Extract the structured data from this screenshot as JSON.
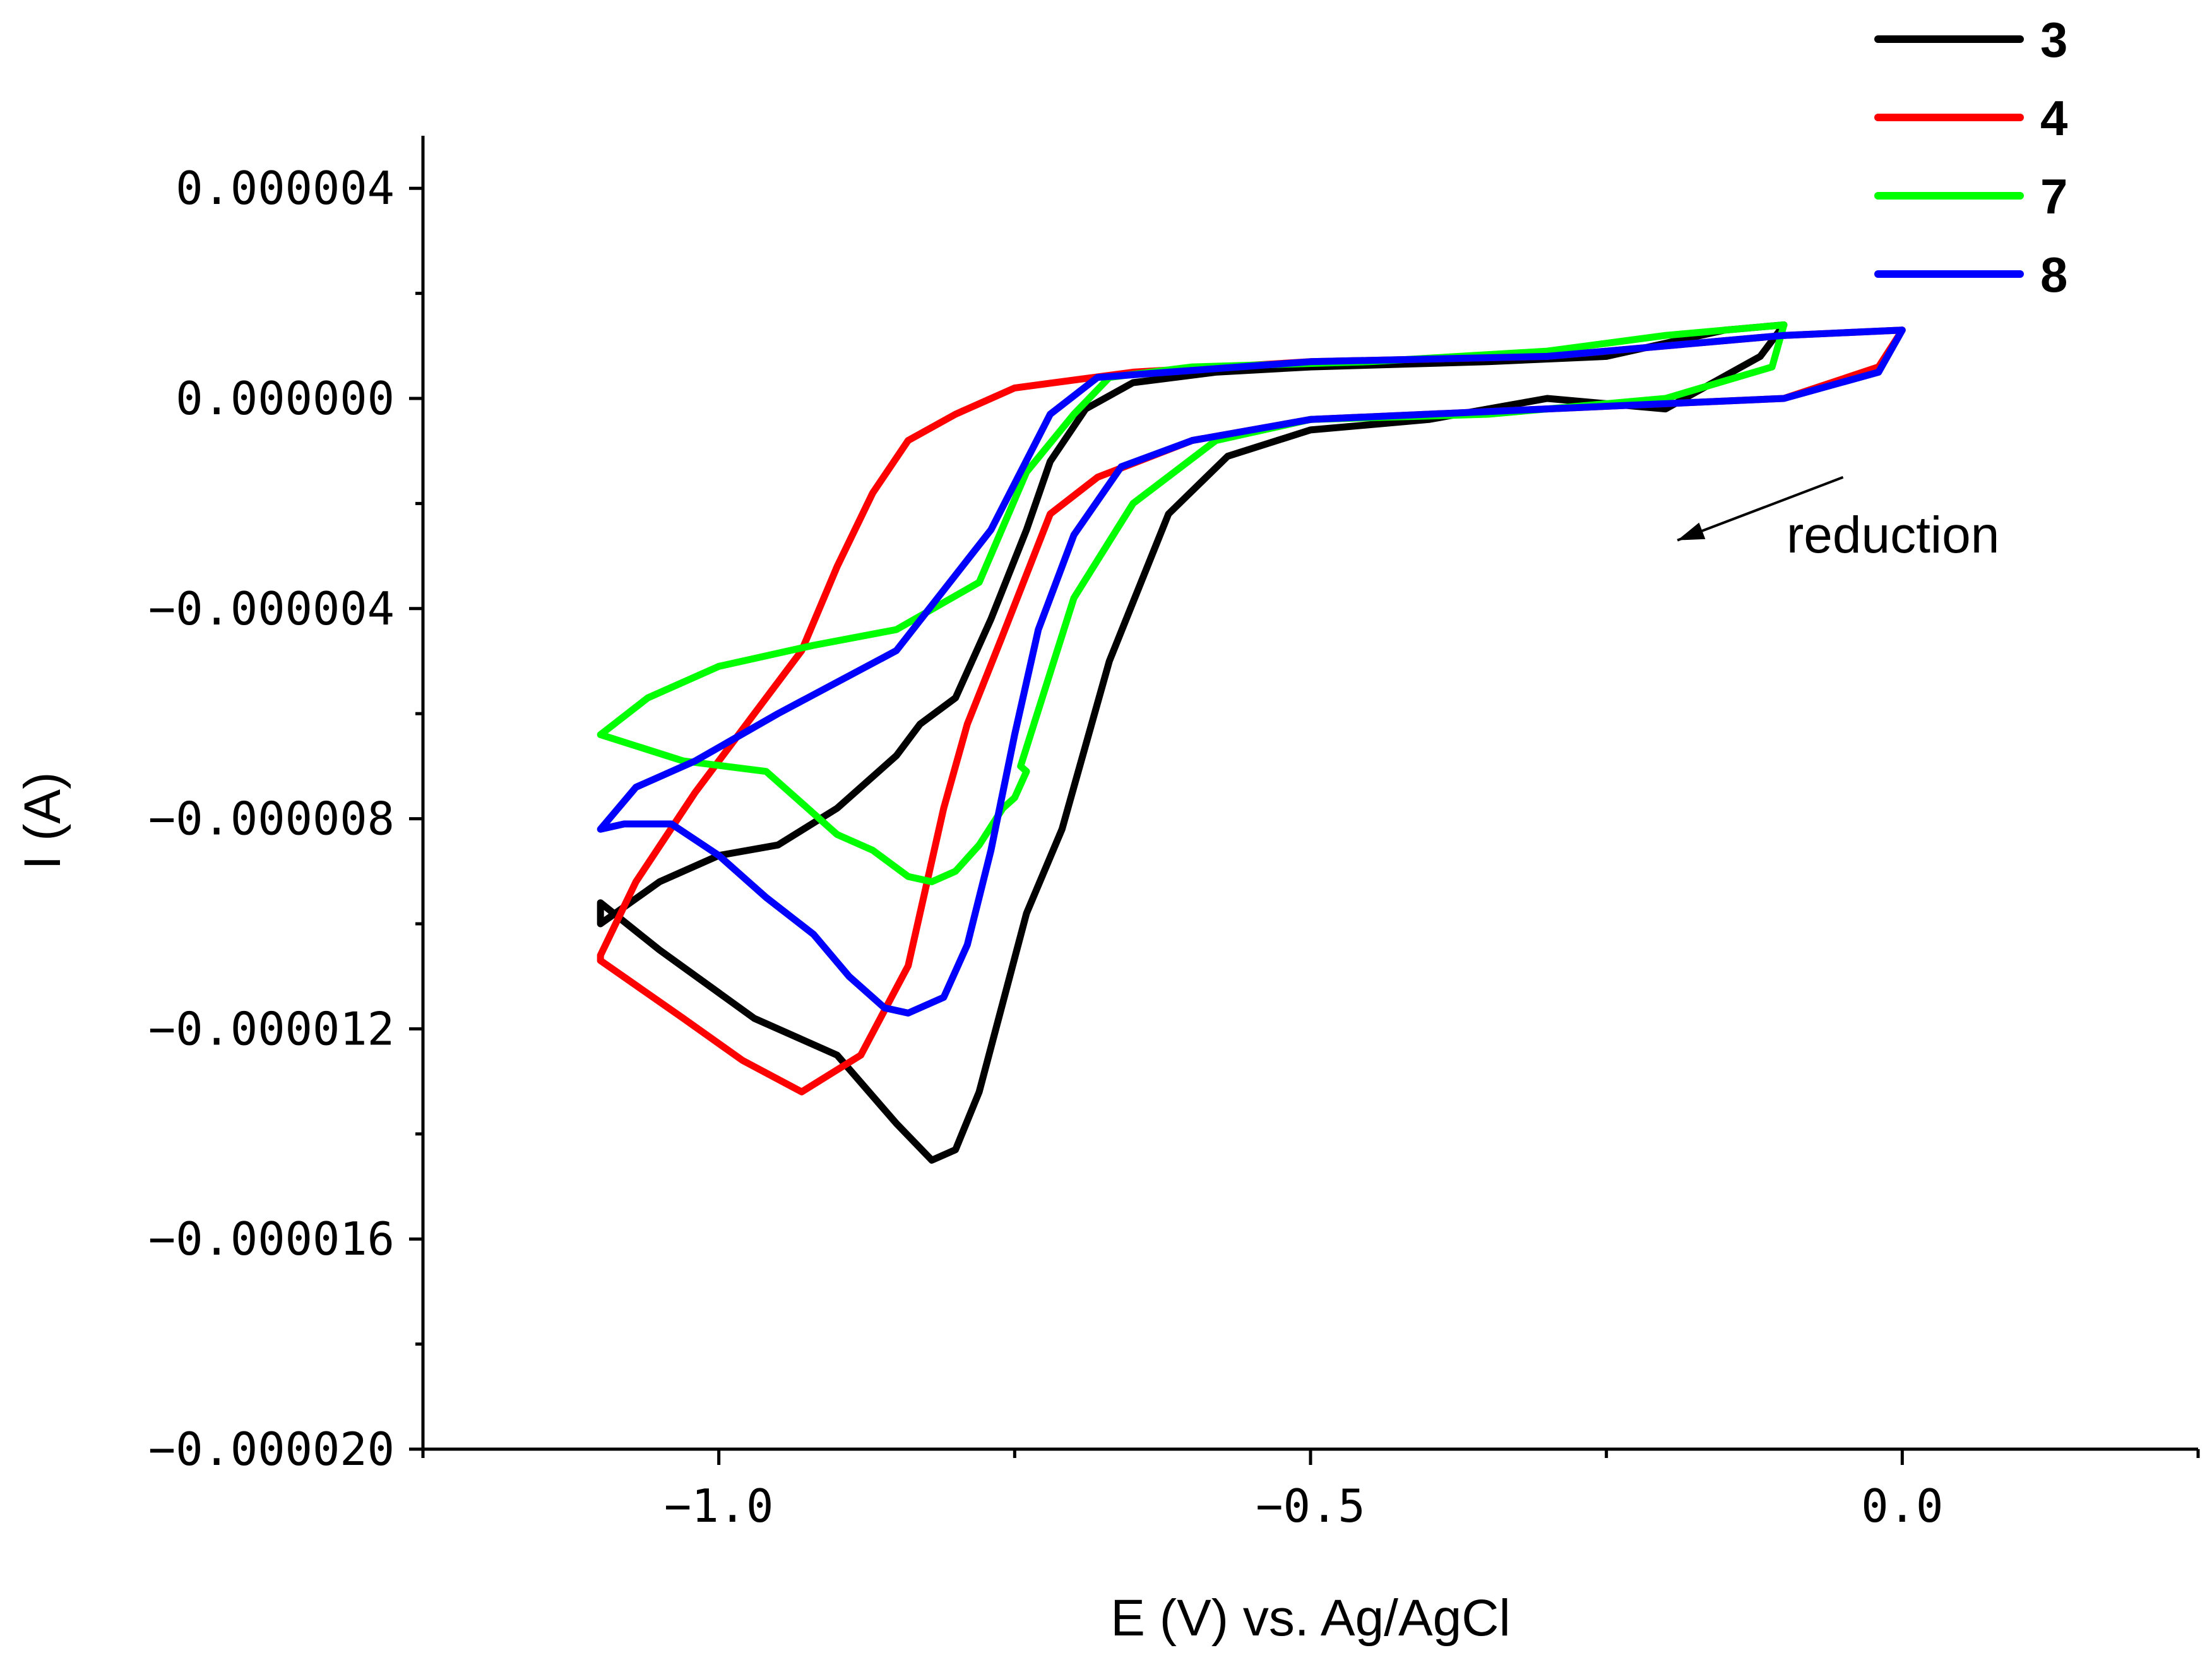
{
  "chart_data": {
    "type": "line",
    "title": "",
    "xlabel": "E (V) vs. Ag/AgCl",
    "ylabel": "I (A)",
    "xlim": [
      -1.25,
      0.25
    ],
    "ylim": [
      -2e-05,
      5e-06
    ],
    "x_ticks": [
      -1.0,
      -0.5,
      0.0
    ],
    "x_tick_labels": [
      "−1.0",
      "−0.5",
      "0.0"
    ],
    "y_ticks": [
      4e-06,
      0.0,
      -4e-06,
      -8e-06,
      -1.2e-05,
      -1.6e-05,
      -2e-05
    ],
    "y_tick_labels": [
      "0.000004",
      "0.000000",
      "−0.000004",
      "−0.000008",
      "−0.000012",
      "−0.000016",
      "−0.000020"
    ],
    "grid": false,
    "legend_position": "top-right",
    "annotation": {
      "text": "reduction",
      "arrow_from": [
        -0.05,
        -1.5e-06
      ],
      "arrow_to": [
        -0.19,
        -2.7e-06
      ]
    },
    "series": [
      {
        "name": "3",
        "color": "#000000",
        "x": [
          -0.1,
          -0.15,
          -0.25,
          -0.35,
          -0.5,
          -0.58,
          -0.65,
          -0.69,
          -0.72,
          -0.74,
          -0.77,
          -0.8,
          -0.83,
          -0.85,
          -0.9,
          -0.95,
          -1.0,
          -1.05,
          -1.1,
          -1.1,
          -1.05,
          -0.97,
          -0.9,
          -0.85,
          -0.82,
          -0.8,
          -0.78,
          -0.76,
          -0.74,
          -0.71,
          -0.67,
          -0.62,
          -0.57,
          -0.5,
          -0.4,
          -0.3,
          -0.2,
          -0.12,
          -0.1
        ],
        "y": [
          1.4e-06,
          1.3e-06,
          8e-07,
          7e-07,
          6e-07,
          5e-07,
          3e-07,
          -2e-07,
          -1.2e-06,
          -2.5e-06,
          -4.2e-06,
          -5.7e-06,
          -6.2e-06,
          -6.8e-06,
          -7.8e-06,
          -8.5e-06,
          -8.7e-06,
          -9.2e-06,
          -1e-05,
          -9.6e-06,
          -1.05e-05,
          -1.18e-05,
          -1.25e-05,
          -1.38e-05,
          -1.45e-05,
          -1.43e-05,
          -1.32e-05,
          -1.15e-05,
          -9.8e-06,
          -8.2e-06,
          -5e-06,
          -2.2e-06,
          -1.1e-06,
          -6e-07,
          -4e-07,
          0.0,
          -2e-07,
          8e-07,
          1.4e-06
        ]
      },
      {
        "name": "4",
        "color": "#ff0000",
        "x": [
          0.0,
          -0.1,
          -0.3,
          -0.5,
          -0.65,
          -0.75,
          -0.8,
          -0.84,
          -0.87,
          -0.9,
          -0.93,
          -0.97,
          -1.02,
          -1.07,
          -1.1,
          -1.1,
          -1.03,
          -0.98,
          -0.93,
          -0.88,
          -0.84,
          -0.81,
          -0.79,
          -0.76,
          -0.72,
          -0.68,
          -0.6,
          -0.5,
          -0.3,
          -0.1,
          -0.02,
          0.0
        ],
        "y": [
          1.3e-06,
          1.2e-06,
          8e-07,
          7e-07,
          5e-07,
          2e-07,
          -3e-07,
          -8e-07,
          -1.8e-06,
          -3.2e-06,
          -4.8e-06,
          -6e-06,
          -7.5e-06,
          -9.2e-06,
          -1.06e-05,
          -1.07e-05,
          -1.18e-05,
          -1.26e-05,
          -1.32e-05,
          -1.25e-05,
          -1.08e-05,
          -7.8e-06,
          -6.2e-06,
          -4.5e-06,
          -2.2e-06,
          -1.5e-06,
          -8e-07,
          -4e-07,
          -2e-07,
          0.0,
          6e-07,
          1.3e-06
        ]
      },
      {
        "name": "7",
        "color": "#00ff00",
        "x": [
          -0.1,
          -0.2,
          -0.3,
          -0.45,
          -0.6,
          -0.67,
          -0.7,
          -0.74,
          -0.78,
          -0.85,
          -0.92,
          -1.0,
          -1.06,
          -1.1,
          -1.03,
          -0.96,
          -0.93,
          -0.9,
          -0.87,
          -0.84,
          -0.82,
          -0.8,
          -0.78,
          -0.76,
          -0.75,
          -0.74,
          -0.745,
          -0.7,
          -0.65,
          -0.58,
          -0.5,
          -0.35,
          -0.2,
          -0.11,
          -0.1
        ],
        "y": [
          1.4e-06,
          1.2e-06,
          9e-07,
          7e-07,
          6e-07,
          4e-07,
          -3e-07,
          -1.4e-06,
          -3.5e-06,
          -4.4e-06,
          -4.7e-06,
          -5.1e-06,
          -5.7e-06,
          -6.4e-06,
          -6.9e-06,
          -7.1e-06,
          -7.7e-06,
          -8.3e-06,
          -8.6e-06,
          -9.1e-06,
          -9.2e-06,
          -9e-06,
          -8.5e-06,
          -7.8e-06,
          -7.6e-06,
          -7.1e-06,
          -7e-06,
          -3.8e-06,
          -2e-06,
          -8e-07,
          -4e-07,
          -3e-07,
          0.0,
          6e-07,
          1.4e-06
        ]
      },
      {
        "name": "8",
        "color": "#0000ff",
        "x": [
          0.0,
          -0.1,
          -0.3,
          -0.5,
          -0.62,
          -0.68,
          -0.72,
          -0.77,
          -0.85,
          -0.95,
          -1.02,
          -1.07,
          -1.1,
          -1.08,
          -1.04,
          -1.0,
          -0.96,
          -0.92,
          -0.89,
          -0.86,
          -0.84,
          -0.81,
          -0.79,
          -0.77,
          -0.75,
          -0.73,
          -0.7,
          -0.66,
          -0.6,
          -0.5,
          -0.3,
          -0.1,
          -0.02,
          0.0
        ],
        "y": [
          1.3e-06,
          1.2e-06,
          8e-07,
          7e-07,
          5e-07,
          4e-07,
          -3e-07,
          -2.5e-06,
          -4.8e-06,
          -6e-06,
          -6.9e-06,
          -7.4e-06,
          -8.2e-06,
          -8.1e-06,
          -8.1e-06,
          -8.7e-06,
          -9.5e-06,
          -1.02e-05,
          -1.1e-05,
          -1.16e-05,
          -1.17e-05,
          -1.14e-05,
          -1.04e-05,
          -8.6e-06,
          -6.4e-06,
          -4.4e-06,
          -2.6e-06,
          -1.3e-06,
          -8e-07,
          -4e-07,
          -2e-07,
          0.0,
          5e-07,
          1.3e-06
        ]
      }
    ]
  }
}
